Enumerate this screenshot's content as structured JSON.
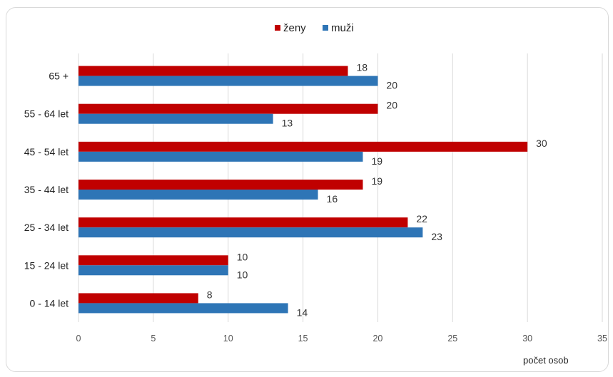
{
  "chart_data": {
    "type": "bar",
    "orientation": "horizontal",
    "categories": [
      "65 +",
      "55 - 64 let",
      "45 - 54 let",
      "35 - 44 let",
      "25 - 34 let",
      "15 - 24 let",
      "0 - 14 let"
    ],
    "series": [
      {
        "name": "ženy",
        "color": "#c00000",
        "values": [
          18,
          20,
          30,
          19,
          22,
          10,
          8
        ]
      },
      {
        "name": "muži",
        "color": "#2e75b6",
        "values": [
          20,
          13,
          19,
          16,
          23,
          10,
          14
        ]
      }
    ],
    "xlim": [
      0,
      35
    ],
    "xticks": [
      0,
      5,
      10,
      15,
      20,
      25,
      30,
      35
    ],
    "xlabel": "počet osob",
    "ylabel": "",
    "title": "",
    "grid": true,
    "legend_position": "top-center"
  }
}
